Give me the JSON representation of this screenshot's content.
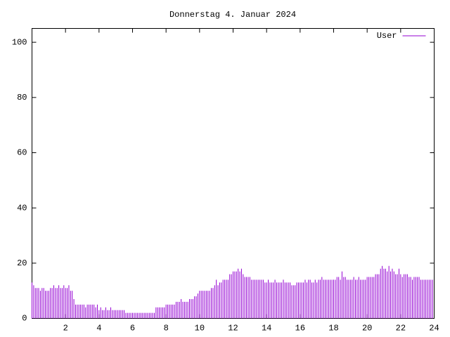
{
  "chart_data": {
    "type": "impulse",
    "title": "Donnerstag 4. Januar 2024",
    "series": [
      {
        "name": "User",
        "color": "#9400d3",
        "x": [
          0,
          0.1,
          0.2,
          0.3,
          0.4,
          0.5,
          0.6,
          0.7,
          0.8,
          0.9,
          1,
          1.1,
          1.2,
          1.3,
          1.4,
          1.5,
          1.6,
          1.7,
          1.8,
          1.9,
          2,
          2.1,
          2.2,
          2.3,
          2.4,
          2.5,
          2.6,
          2.7,
          2.8,
          2.9,
          3,
          3.1,
          3.2,
          3.3,
          3.4,
          3.5,
          3.6,
          3.7,
          3.8,
          3.9,
          4,
          4.1,
          4.2,
          4.3,
          4.4,
          4.5,
          4.6,
          4.7,
          4.8,
          4.9,
          5,
          5.1,
          5.2,
          5.3,
          5.4,
          5.5,
          5.6,
          5.7,
          5.8,
          5.9,
          6,
          6.1,
          6.2,
          6.3,
          6.4,
          6.5,
          6.6,
          6.7,
          6.8,
          6.9,
          7,
          7.1,
          7.2,
          7.3,
          7.4,
          7.5,
          7.6,
          7.7,
          7.8,
          7.9,
          8,
          8.1,
          8.2,
          8.3,
          8.4,
          8.5,
          8.6,
          8.7,
          8.8,
          8.9,
          9,
          9.1,
          9.2,
          9.3,
          9.4,
          9.5,
          9.6,
          9.7,
          9.8,
          9.9,
          10,
          10.1,
          10.2,
          10.3,
          10.4,
          10.5,
          10.6,
          10.7,
          10.8,
          10.9,
          11,
          11.1,
          11.2,
          11.3,
          11.4,
          11.5,
          11.6,
          11.7,
          11.8,
          11.9,
          12,
          12.1,
          12.2,
          12.3,
          12.4,
          12.5,
          12.6,
          12.7,
          12.8,
          12.9,
          13,
          13.1,
          13.2,
          13.3,
          13.4,
          13.5,
          13.6,
          13.7,
          13.8,
          13.9,
          14,
          14.1,
          14.2,
          14.3,
          14.4,
          14.5,
          14.6,
          14.7,
          14.8,
          14.9,
          15,
          15.1,
          15.2,
          15.3,
          15.4,
          15.5,
          15.6,
          15.7,
          15.8,
          15.9,
          16,
          16.1,
          16.2,
          16.3,
          16.4,
          16.5,
          16.6,
          16.7,
          16.8,
          16.9,
          17,
          17.1,
          17.2,
          17.3,
          17.4,
          17.5,
          17.6,
          17.7,
          17.8,
          17.9,
          18,
          18.1,
          18.2,
          18.3,
          18.4,
          18.5,
          18.6,
          18.7,
          18.8,
          18.9,
          19,
          19.1,
          19.2,
          19.3,
          19.4,
          19.5,
          19.6,
          19.7,
          19.8,
          19.9,
          20,
          20.1,
          20.2,
          20.3,
          20.4,
          20.5,
          20.6,
          20.7,
          20.8,
          20.9,
          21,
          21.1,
          21.2,
          21.3,
          21.4,
          21.5,
          21.6,
          21.7,
          21.8,
          21.9,
          22,
          22.1,
          22.2,
          22.3,
          22.4,
          22.5,
          22.6,
          22.7,
          22.8,
          22.9,
          23,
          23.1,
          23.2,
          23.3,
          23.4,
          23.5,
          23.6,
          23.7,
          23.8,
          23.9
        ],
        "values": [
          13,
          12,
          11,
          11,
          11,
          10,
          11,
          11,
          10,
          10,
          10,
          11,
          11,
          12,
          11,
          11,
          12,
          11,
          11,
          12,
          11,
          11,
          12,
          10,
          10,
          7,
          5,
          5,
          5,
          5,
          5,
          5,
          4,
          5,
          5,
          5,
          5,
          5,
          4,
          5,
          3,
          4,
          3,
          3,
          4,
          3,
          3,
          4,
          3,
          3,
          3,
          3,
          3,
          3,
          3,
          3,
          2,
          2,
          2,
          2,
          2,
          2,
          2,
          2,
          2,
          2,
          2,
          2,
          2,
          2,
          2,
          2,
          2,
          2,
          4,
          4,
          4,
          4,
          4,
          4,
          5,
          5,
          5,
          5,
          5,
          5,
          6,
          6,
          6,
          7,
          6,
          6,
          6,
          6,
          7,
          7,
          7,
          8,
          8,
          9,
          10,
          10,
          10,
          10,
          10,
          10,
          10,
          11,
          11,
          12,
          14,
          12,
          13,
          13,
          14,
          14,
          14,
          14,
          16,
          16,
          17,
          17,
          17,
          18,
          17,
          18,
          16,
          15,
          15,
          15,
          15,
          14,
          14,
          14,
          14,
          14,
          14,
          14,
          14,
          13,
          13,
          14,
          13,
          13,
          13,
          14,
          13,
          13,
          13,
          13,
          14,
          13,
          13,
          13,
          13,
          12,
          12,
          12,
          13,
          13,
          13,
          13,
          13,
          14,
          13,
          14,
          14,
          13,
          13,
          14,
          13,
          14,
          14,
          15,
          14,
          14,
          14,
          14,
          14,
          14,
          14,
          14,
          15,
          15,
          14,
          17,
          15,
          15,
          14,
          14,
          14,
          14,
          15,
          14,
          14,
          15,
          14,
          14,
          14,
          14,
          15,
          15,
          15,
          15,
          15,
          16,
          16,
          16,
          18,
          19,
          18,
          18,
          17,
          19,
          17,
          18,
          17,
          16,
          16,
          18,
          16,
          15,
          16,
          16,
          16,
          15,
          15,
          14,
          15,
          15,
          15,
          15,
          14,
          14,
          14,
          14,
          14,
          14,
          14,
          14
        ]
      }
    ],
    "xlim": [
      0,
      24
    ],
    "xticks": [
      2,
      4,
      6,
      8,
      10,
      12,
      14,
      16,
      18,
      20,
      22,
      24
    ],
    "ylim": [
      0,
      105
    ],
    "yticks": [
      0,
      20,
      40,
      60,
      80,
      100
    ],
    "legend": "top-right"
  }
}
